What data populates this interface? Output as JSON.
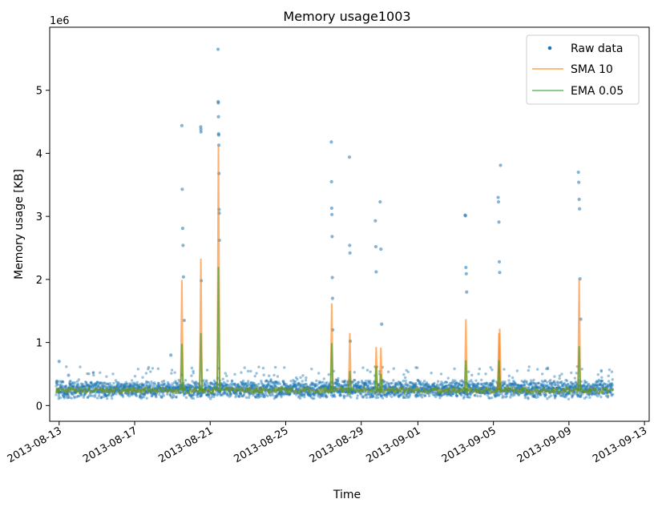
{
  "chart_data": {
    "type": "scatter",
    "title": "Memory usage1003",
    "xlabel": "Time",
    "ylabel": "Memory usage [KB]",
    "y_offset_text": "1e6",
    "x_type": "date",
    "xlim": [
      "2013-08-12T12:00",
      "2013-09-13T06:00"
    ],
    "ylim": [
      -250000,
      6000000
    ],
    "x_ticks": [
      "2013-08-13",
      "2013-08-17",
      "2013-08-21",
      "2013-08-25",
      "2013-08-29",
      "2013-09-01",
      "2013-09-05",
      "2013-09-09",
      "2013-09-13"
    ],
    "y_ticks": [
      0,
      1,
      2,
      3,
      4,
      5
    ],
    "y_tick_scale": 1000000,
    "legend_position": "top-right",
    "grid": false,
    "colors": {
      "raw": "#1f77b4",
      "sma": "#ff7f0e",
      "ema": "#2ca02c"
    },
    "series": [
      {
        "name": "Raw data",
        "style": "points",
        "baseline": {
          "x_start": "2013-08-12T20:00",
          "x_end": "2013-09-11T08:00",
          "typical_range": [
            100000,
            420000
          ]
        },
        "x": [
          "2013-08-13T00:00",
          "2013-08-13T12:00",
          "2013-08-18T22:00",
          "2013-08-19T12:00",
          "2013-08-19T12:30",
          "2013-08-19T13:00",
          "2013-08-19T13:30",
          "2013-08-19T14:00",
          "2013-08-19T15:00",
          "2013-08-20T12:00",
          "2013-08-20T12:10",
          "2013-08-20T12:20",
          "2013-08-20T12:40",
          "2013-08-21T10:00",
          "2013-08-21T10:10",
          "2013-08-21T10:20",
          "2013-08-21T10:30",
          "2013-08-21T10:40",
          "2013-08-21T10:50",
          "2013-08-21T11:00",
          "2013-08-21T11:10",
          "2013-08-21T11:20",
          "2013-08-21T11:30",
          "2013-08-21T11:40",
          "2013-08-27T10:00",
          "2013-08-27T10:15",
          "2013-08-27T10:30",
          "2013-08-27T10:45",
          "2013-08-27T11:00",
          "2013-08-27T11:15",
          "2013-08-27T11:30",
          "2013-08-27T11:45",
          "2013-08-28T09:00",
          "2013-08-28T09:20",
          "2013-08-28T09:40",
          "2013-08-28T10:00",
          "2013-08-29T18:00",
          "2013-08-29T18:30",
          "2013-08-29T19:00",
          "2013-08-30T00:00",
          "2013-08-30T01:00",
          "2013-08-30T02:00",
          "2013-09-03T12:00",
          "2013-09-03T12:30",
          "2013-09-03T13:00",
          "2013-09-03T13:30",
          "2013-09-03T14:00",
          "2013-09-05T06:00",
          "2013-09-05T06:30",
          "2013-09-05T07:00",
          "2013-09-05T07:30",
          "2013-09-05T08:00",
          "2013-09-05T09:00",
          "2013-09-09T12:00",
          "2013-09-09T12:30",
          "2013-09-09T13:00",
          "2013-09-09T13:30",
          "2013-09-09T14:00",
          "2013-09-09T15:00"
        ],
        "y": [
          700000,
          480000,
          800000,
          4440000,
          3430000,
          2810000,
          2540000,
          2040000,
          1350000,
          4420000,
          4380000,
          4340000,
          1980000,
          5650000,
          4820000,
          4800000,
          4580000,
          4310000,
          4290000,
          4130000,
          3680000,
          3110000,
          3050000,
          2620000,
          4180000,
          3550000,
          3130000,
          3030000,
          2680000,
          2030000,
          1700000,
          1200000,
          3940000,
          2540000,
          2420000,
          1020000,
          2930000,
          2520000,
          2120000,
          3230000,
          2480000,
          1290000,
          3020000,
          3010000,
          2190000,
          2090000,
          1800000,
          3300000,
          3230000,
          2910000,
          2280000,
          2110000,
          3810000,
          3700000,
          3540000,
          3270000,
          3120000,
          2010000,
          1370000
        ]
      },
      {
        "name": "SMA 10",
        "style": "line",
        "baseline_level": 240000,
        "x": [
          "2013-08-19T12:00",
          "2013-08-20T12:10",
          "2013-08-21T10:30",
          "2013-08-27T10:30",
          "2013-08-28T09:30",
          "2013-08-29T19:00",
          "2013-08-30T01:00",
          "2013-09-03T13:00",
          "2013-09-05T07:00",
          "2013-09-05T08:00",
          "2013-09-09T13:00"
        ],
        "y": [
          1990000,
          2330000,
          4130000,
          1620000,
          1150000,
          930000,
          920000,
          1370000,
          1150000,
          1220000,
          2000000
        ]
      },
      {
        "name": "EMA 0.05",
        "style": "line",
        "baseline_level": 240000,
        "x": [
          "2013-08-19T12:00",
          "2013-08-20T12:10",
          "2013-08-21T10:30",
          "2013-08-27T10:30",
          "2013-08-28T09:30",
          "2013-08-29T19:00",
          "2013-08-30T01:00",
          "2013-09-03T13:00",
          "2013-09-05T07:00",
          "2013-09-09T13:00"
        ],
        "y": [
          980000,
          1150000,
          2200000,
          990000,
          550000,
          620000,
          500000,
          720000,
          720000,
          940000
        ]
      }
    ]
  }
}
